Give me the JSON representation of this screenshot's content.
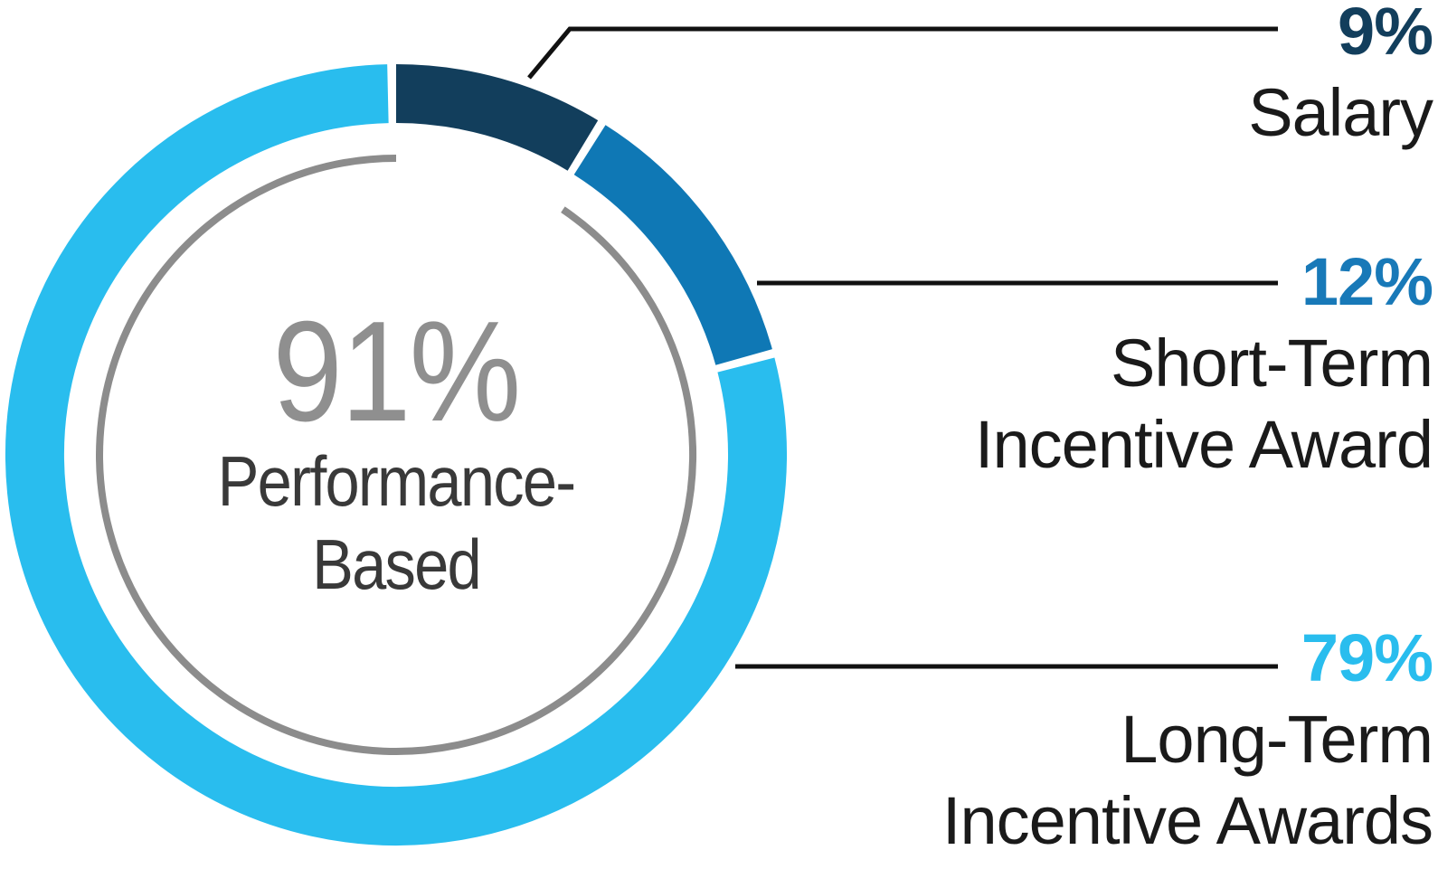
{
  "chart_data": {
    "type": "donut",
    "direction": "clockwise",
    "start_angle_deg": 0,
    "background": "#FFFFFF",
    "slices": [
      {
        "id": "salary",
        "label": "Salary",
        "value": 9,
        "color": "#123E5C"
      },
      {
        "id": "short-term",
        "label": "Short-Term Incentive Award",
        "value": 12,
        "color": "#0F78B5"
      },
      {
        "id": "long-term",
        "label": "Long-Term Incentive Awards",
        "value": 79,
        "color": "#29BDEE"
      }
    ],
    "inner_ring": {
      "pct": 91,
      "color": "#8C8C8C"
    },
    "center": {
      "pct": "91%",
      "label_lines": [
        "Performance-",
        "Based"
      ],
      "pct_color": "#8F8F8F",
      "label_color": "#393939"
    },
    "callouts": [
      {
        "id": "salary",
        "pct": "9%",
        "color": "#123E5C",
        "lines": [
          "Salary"
        ]
      },
      {
        "id": "short-term",
        "pct": "12%",
        "color": "#1879B8",
        "lines": [
          "Short-Term",
          "Incentive Award"
        ]
      },
      {
        "id": "long-term",
        "pct": "79%",
        "color": "#29BDEE",
        "lines": [
          "Long-Term",
          "Incentive Awards"
        ]
      }
    ],
    "label_text_color": "#1A1A1A",
    "leader_line_color": "#111111",
    "legend_position": "right-callouts"
  }
}
